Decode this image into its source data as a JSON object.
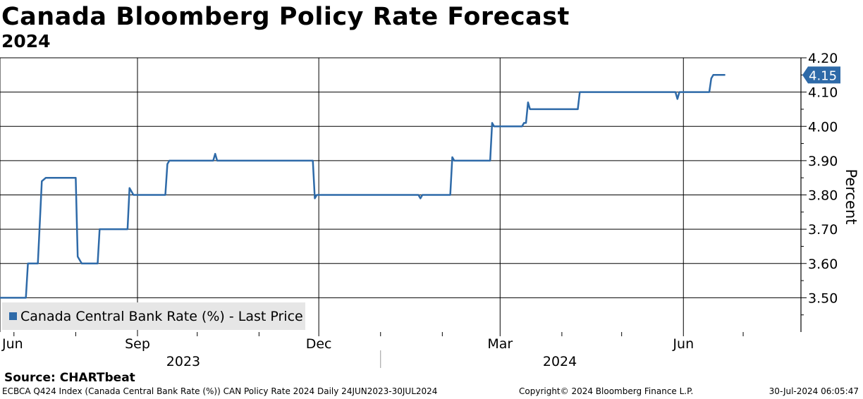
{
  "header": {
    "title": "Canada Bloomberg Policy Rate Forecast",
    "subtitle": "2024"
  },
  "chart_data": {
    "type": "line",
    "title": "Canada Bloomberg Policy Rate Forecast",
    "subtitle": "2024",
    "ylabel": "Percent",
    "xlabel": "",
    "ylim": [
      3.4,
      4.2
    ],
    "y_ticks": [
      "3.50",
      "3.60",
      "3.70",
      "3.80",
      "3.90",
      "4.00",
      "4.10",
      "4.20"
    ],
    "xlim": [
      "2023-06-24",
      "2024-07-30"
    ],
    "x_ticks": [
      {
        "label": "Jun",
        "date": "2023-06-24"
      },
      {
        "label": "Sep",
        "date": "2023-09-01"
      },
      {
        "label": "Dec",
        "date": "2023-12-01"
      },
      {
        "label": "Mar",
        "date": "2024-03-01"
      },
      {
        "label": "Jun",
        "date": "2024-06-01"
      }
    ],
    "year_labels": [
      {
        "label": "2023",
        "date": "2023-09-24"
      },
      {
        "label": "2024",
        "date": "2024-03-31"
      }
    ],
    "year_divider_date": "2024-01-01",
    "grid": true,
    "legend_position": "bottom-left",
    "last_value_label": "4.15",
    "series": [
      {
        "name": "Canada Central Bank Rate (%) - Last Price",
        "color": "#2e6aa8",
        "points": [
          [
            "2023-06-24",
            3.5
          ],
          [
            "2023-07-07",
            3.5
          ],
          [
            "2023-07-08",
            3.6
          ],
          [
            "2023-07-13",
            3.6
          ],
          [
            "2023-07-15",
            3.84
          ],
          [
            "2023-07-17",
            3.85
          ],
          [
            "2023-08-01",
            3.85
          ],
          [
            "2023-08-02",
            3.62
          ],
          [
            "2023-08-04",
            3.6
          ],
          [
            "2023-08-12",
            3.6
          ],
          [
            "2023-08-13",
            3.7
          ],
          [
            "2023-08-27",
            3.7
          ],
          [
            "2023-08-28",
            3.82
          ],
          [
            "2023-08-30",
            3.8
          ],
          [
            "2023-09-15",
            3.8
          ],
          [
            "2023-09-16",
            3.89
          ],
          [
            "2023-09-17",
            3.9
          ],
          [
            "2023-10-09",
            3.9
          ],
          [
            "2023-10-10",
            3.92
          ],
          [
            "2023-10-11",
            3.9
          ],
          [
            "2023-11-28",
            3.9
          ],
          [
            "2023-11-29",
            3.79
          ],
          [
            "2023-11-30",
            3.8
          ],
          [
            "2024-01-20",
            3.8
          ],
          [
            "2024-01-21",
            3.79
          ],
          [
            "2024-01-22",
            3.8
          ],
          [
            "2024-02-05",
            3.8
          ],
          [
            "2024-02-06",
            3.91
          ],
          [
            "2024-02-07",
            3.9
          ],
          [
            "2024-02-25",
            3.9
          ],
          [
            "2024-02-26",
            4.01
          ],
          [
            "2024-02-27",
            4.0
          ],
          [
            "2024-03-12",
            4.0
          ],
          [
            "2024-03-13",
            4.01
          ],
          [
            "2024-03-14",
            4.01
          ],
          [
            "2024-03-15",
            4.07
          ],
          [
            "2024-03-16",
            4.05
          ],
          [
            "2024-04-09",
            4.05
          ],
          [
            "2024-04-10",
            4.1
          ],
          [
            "2024-05-28",
            4.1
          ],
          [
            "2024-05-29",
            4.08
          ],
          [
            "2024-05-30",
            4.1
          ],
          [
            "2024-06-14",
            4.1
          ],
          [
            "2024-06-15",
            4.14
          ],
          [
            "2024-06-16",
            4.15
          ],
          [
            "2024-06-22",
            4.15
          ]
        ]
      }
    ]
  },
  "footer": {
    "source": "Source: CHARTbeat",
    "description": "ECBCA Q424 Index (Canada Central Bank Rate (%)) CAN Policy Rate 2024  Daily 24JUN2023-30JUL2024",
    "copyright": "Copyright© 2024 Bloomberg Finance L.P.",
    "timestamp": "30-Jul-2024 06:05:47"
  }
}
